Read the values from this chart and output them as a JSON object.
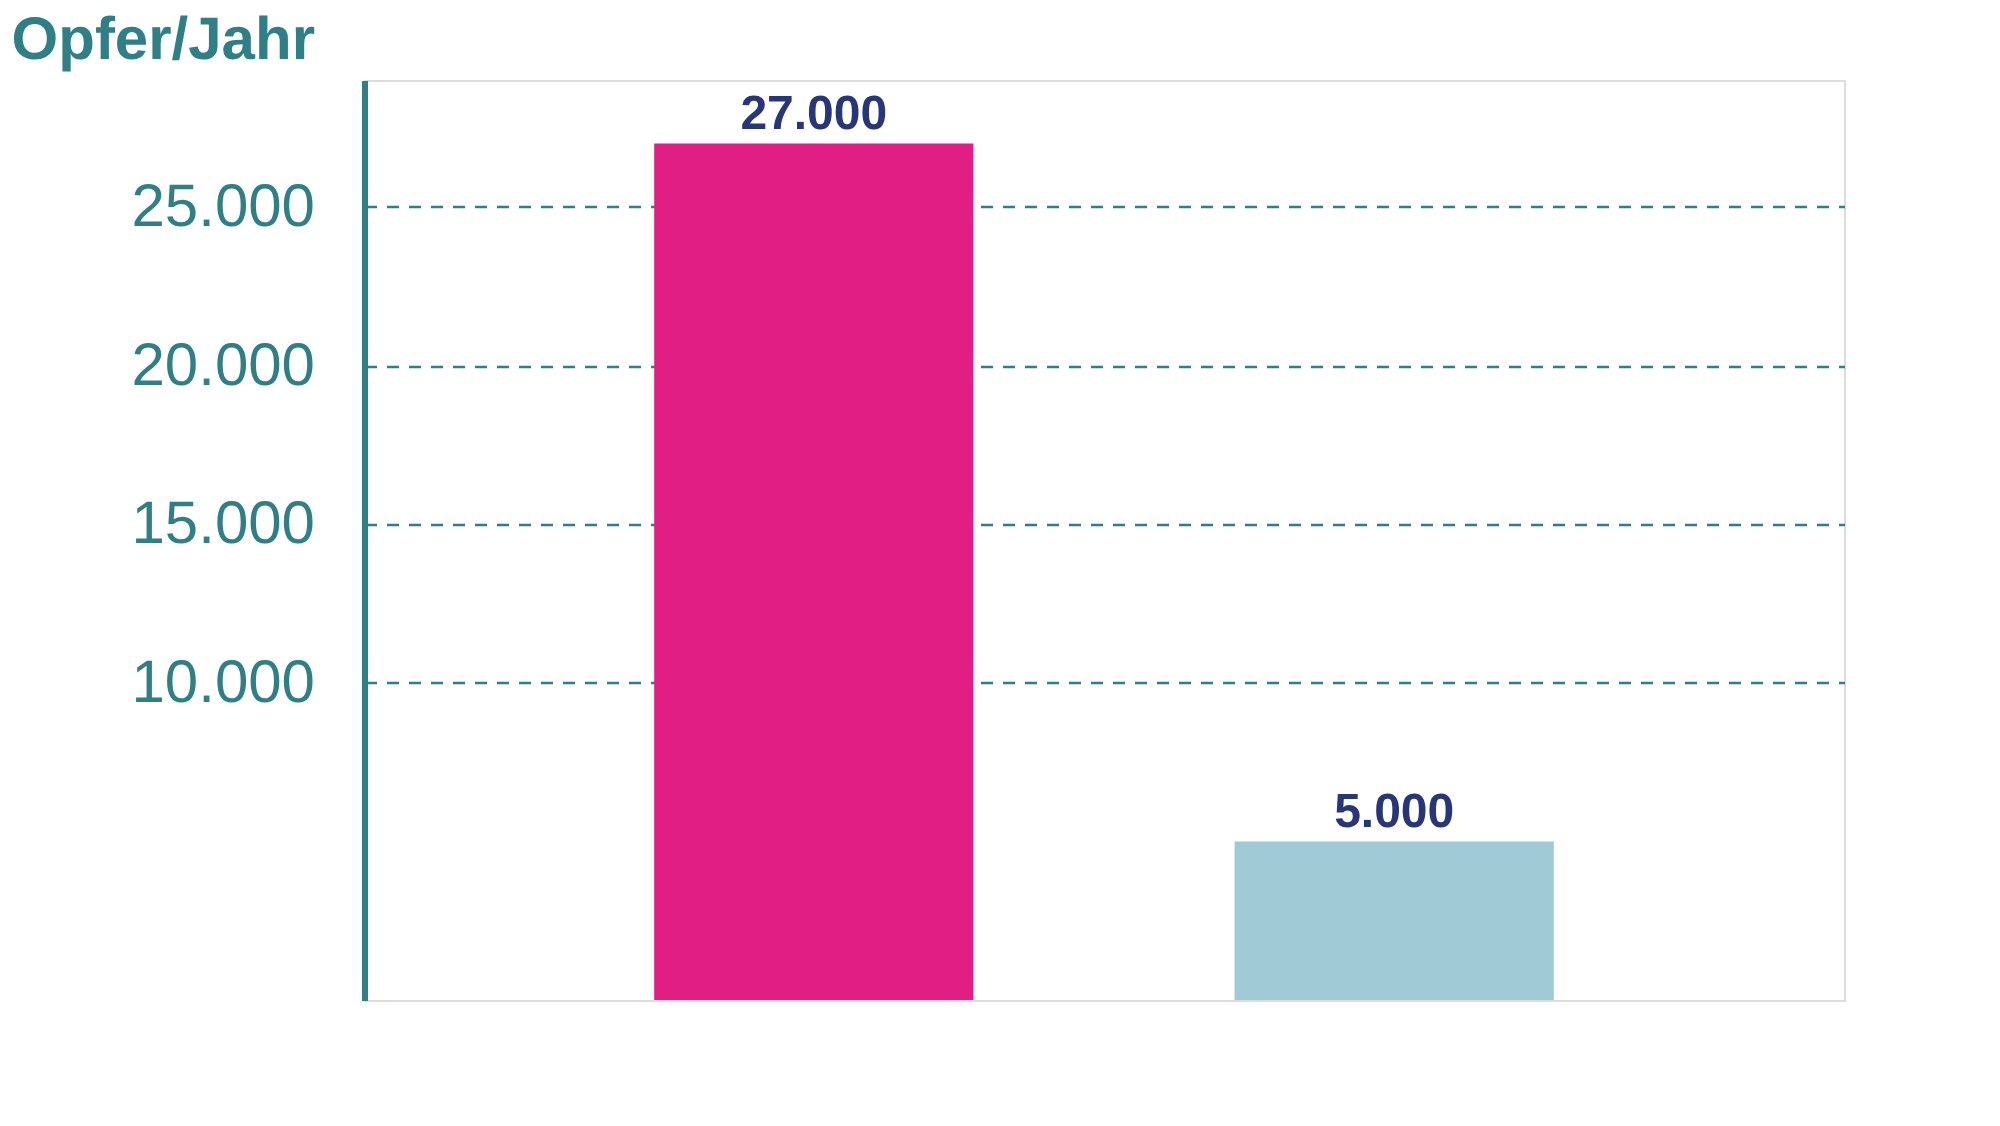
{
  "chart_data": {
    "type": "bar",
    "ylabel": "Opfer/Jahr",
    "categories": [
      null,
      null
    ],
    "values": [
      27000,
      5000
    ],
    "colors": [
      "#e01e84",
      "#9fcad6"
    ],
    "value_labels": [
      "27.000",
      "5.000"
    ],
    "ylim": [
      0,
      29000
    ],
    "yticks": [
      {
        "value": 10000,
        "label": "10.000"
      },
      {
        "value": 15000,
        "label": "15.000"
      },
      {
        "value": 20000,
        "label": "20.000"
      },
      {
        "value": 25000,
        "label": "25.000"
      }
    ],
    "grid": "y"
  }
}
